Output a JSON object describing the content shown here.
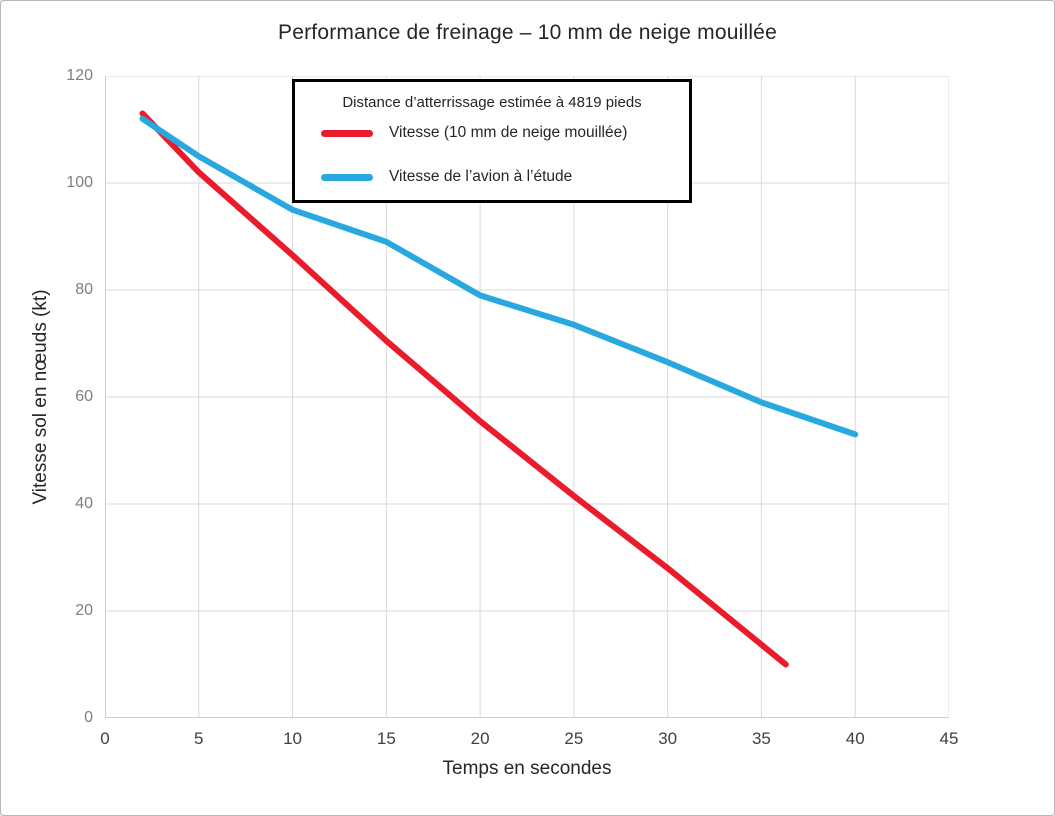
{
  "window": {
    "background": "#ffffff",
    "border_color": "#b7b7b7"
  },
  "colors": {
    "grid": "#d9d9d9",
    "axis": "#bfbfbf",
    "title_text": "#262626",
    "x_tick_text": "#404040",
    "y_tick_text": "#7f7f7f",
    "legend_border": "#000000",
    "series_red": "#ea1c2c",
    "series_blue": "#29a8e0"
  },
  "chart_data": {
    "type": "line",
    "title": "Performance de freinage – 10 mm de neige mouillée",
    "xlabel": "Temps en secondes",
    "ylabel": "Vitesse sol en nœuds (kt)",
    "xlim": [
      0,
      45
    ],
    "ylim": [
      0,
      120
    ],
    "xticks": [
      0,
      5,
      10,
      15,
      20,
      25,
      30,
      35,
      40,
      45
    ],
    "yticks": [
      0,
      20,
      40,
      60,
      80,
      100,
      120
    ],
    "grid": true,
    "legend": {
      "position": "inside-top",
      "header": "Distance d’atterrissage estimée à 4819 pieds"
    },
    "series": [
      {
        "name": "Vitesse (10 mm de neige mouillée)",
        "color": "#ea1c2c",
        "x": [
          2,
          5,
          10,
          15,
          20,
          25,
          30,
          36.3
        ],
        "y": [
          113,
          102,
          86.5,
          70.5,
          55.5,
          41.5,
          28,
          10
        ]
      },
      {
        "name": "Vitesse de l’avion à l’étude",
        "color": "#29a8e0",
        "x": [
          2,
          5,
          10,
          15,
          20,
          25,
          30,
          35,
          40
        ],
        "y": [
          112,
          105,
          95,
          89,
          79,
          73.5,
          66.5,
          59,
          53
        ]
      }
    ]
  }
}
